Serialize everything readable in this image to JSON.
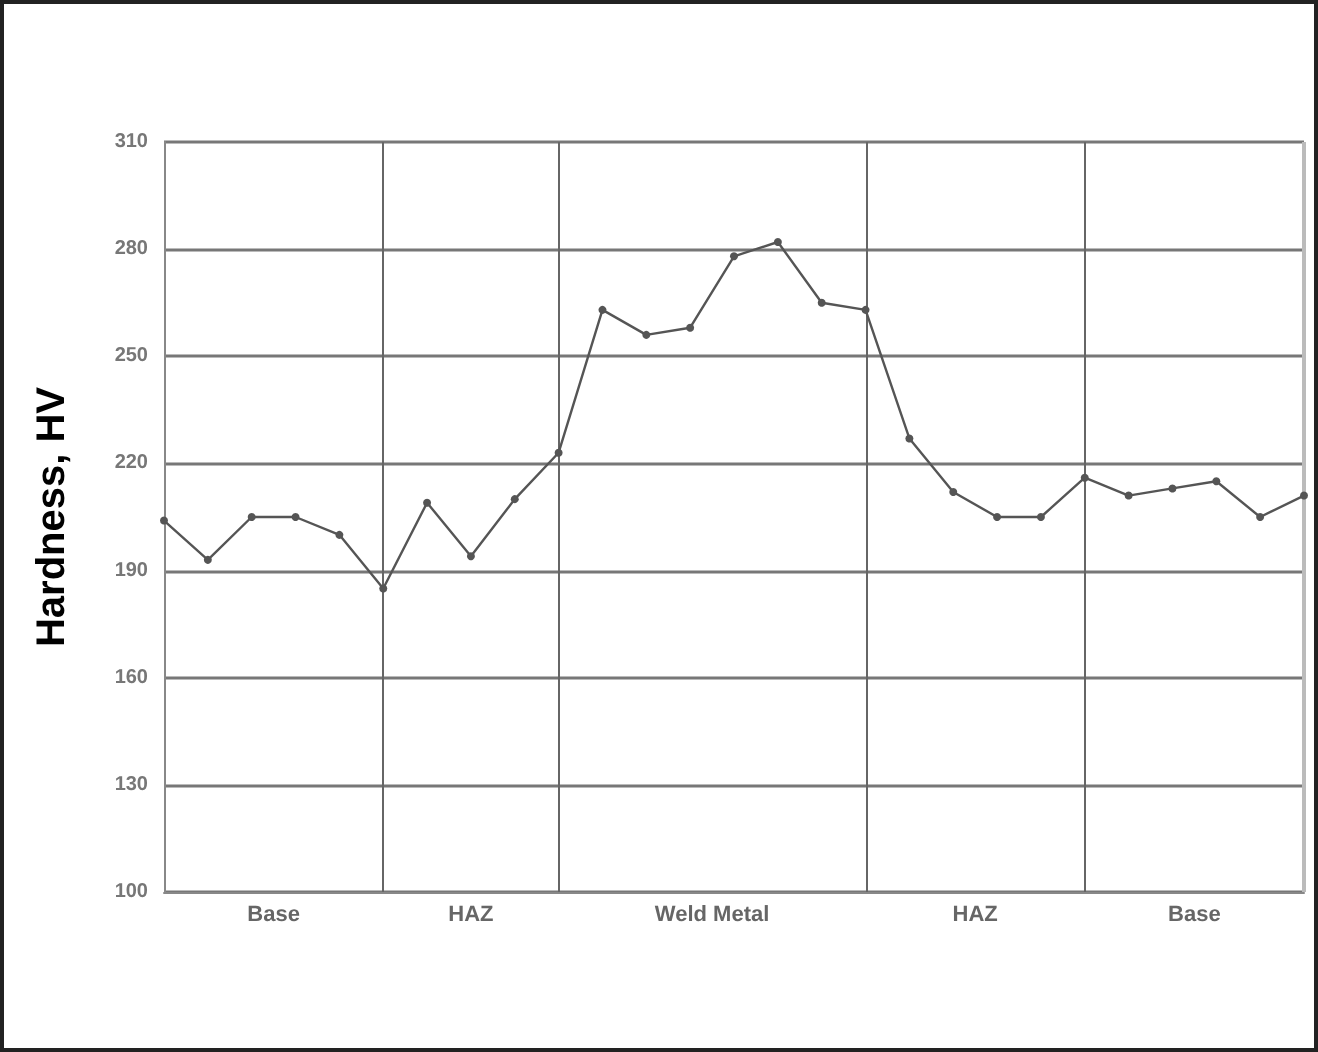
{
  "chart_data": {
    "type": "line",
    "ylabel": "Hardness, HV",
    "categories": [
      null,
      null,
      null,
      null,
      null,
      null,
      null,
      null,
      null,
      null,
      null,
      null,
      null,
      null,
      null,
      null,
      null,
      null,
      null,
      null,
      null,
      null,
      null,
      null,
      null,
      null,
      null
    ],
    "series": [
      {
        "color": "#555555",
        "values": [
          204,
          193,
          205,
          205,
          200,
          185,
          209,
          194,
          210,
          223,
          263,
          256,
          258,
          278,
          282,
          265,
          263,
          227,
          212,
          205,
          205,
          216,
          211,
          213,
          215,
          205,
          211
        ]
      }
    ],
    "ylim": [
      100,
      310
    ],
    "yticks": [
      100,
      130,
      160,
      190,
      220,
      250,
      280,
      310
    ],
    "grid": true,
    "tick_labels": "y",
    "marker": "circle",
    "line_style": "solid",
    "annotations": [
      "Base",
      "HAZ",
      "Weld Metal",
      "HAZ",
      "Base"
    ]
  }
}
